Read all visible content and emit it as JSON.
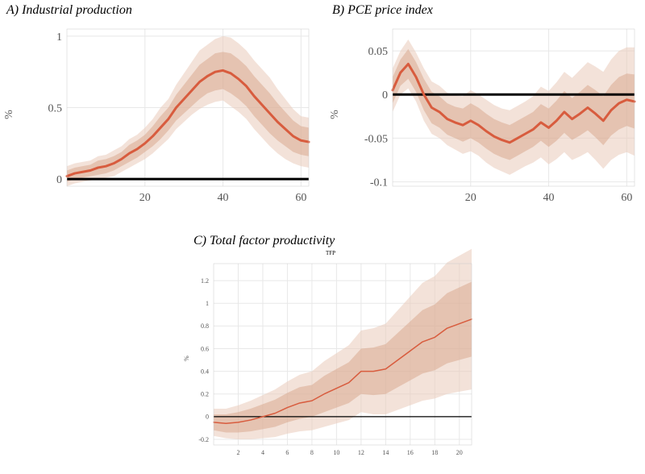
{
  "figure": {
    "background_color": "#ffffff",
    "panels": {
      "a": {
        "title": "A) Industrial production",
        "title_fontsize": 16,
        "title_color": "#000000",
        "ylabel": "%",
        "ylabel_fontsize": 14,
        "type": "line-with-bands",
        "xlim": [
          0,
          62
        ],
        "ylim": [
          -0.05,
          1.05
        ],
        "x_ticks": [
          20,
          40,
          60
        ],
        "y_ticks": [
          0,
          0.5,
          1
        ],
        "y_tick_labels": [
          "0",
          "0.5",
          "1"
        ],
        "tick_fontsize": 14,
        "grid_color": "#e8e8e8",
        "line_color": "#d85c3e",
        "line_width": 3,
        "band_inner_color": "#d9a98f",
        "band_inner_opacity": 0.55,
        "band_outer_color": "#e9cbb9",
        "band_outer_opacity": 0.55,
        "zero_line_color": "#000000",
        "zero_line_width": 3,
        "x": [
          0,
          2,
          4,
          6,
          8,
          10,
          12,
          14,
          16,
          18,
          20,
          22,
          24,
          26,
          28,
          30,
          32,
          34,
          36,
          38,
          40,
          42,
          44,
          46,
          48,
          50,
          52,
          54,
          56,
          58,
          60,
          62
        ],
        "mean": [
          0.02,
          0.04,
          0.05,
          0.06,
          0.08,
          0.09,
          0.11,
          0.14,
          0.18,
          0.21,
          0.25,
          0.3,
          0.36,
          0.42,
          0.5,
          0.56,
          0.62,
          0.68,
          0.72,
          0.75,
          0.76,
          0.74,
          0.7,
          0.65,
          0.58,
          0.52,
          0.46,
          0.4,
          0.35,
          0.3,
          0.27,
          0.26
        ],
        "inner_lo": [
          -0.02,
          0.0,
          0.01,
          0.02,
          0.03,
          0.04,
          0.06,
          0.09,
          0.12,
          0.15,
          0.19,
          0.23,
          0.28,
          0.34,
          0.41,
          0.46,
          0.51,
          0.56,
          0.6,
          0.62,
          0.63,
          0.6,
          0.56,
          0.51,
          0.44,
          0.38,
          0.32,
          0.27,
          0.23,
          0.19,
          0.17,
          0.16
        ],
        "inner_hi": [
          0.06,
          0.08,
          0.09,
          0.1,
          0.13,
          0.14,
          0.16,
          0.19,
          0.24,
          0.27,
          0.31,
          0.37,
          0.44,
          0.5,
          0.59,
          0.66,
          0.73,
          0.8,
          0.84,
          0.88,
          0.89,
          0.88,
          0.84,
          0.79,
          0.72,
          0.66,
          0.6,
          0.53,
          0.47,
          0.41,
          0.37,
          0.36
        ],
        "outer_lo": [
          -0.05,
          -0.03,
          -0.02,
          -0.01,
          0.0,
          0.01,
          0.02,
          0.05,
          0.08,
          0.11,
          0.14,
          0.18,
          0.23,
          0.28,
          0.35,
          0.4,
          0.45,
          0.49,
          0.52,
          0.54,
          0.55,
          0.51,
          0.47,
          0.42,
          0.35,
          0.29,
          0.23,
          0.18,
          0.14,
          0.11,
          0.09,
          0.08
        ],
        "outer_hi": [
          0.09,
          0.11,
          0.12,
          0.13,
          0.16,
          0.17,
          0.2,
          0.23,
          0.28,
          0.31,
          0.36,
          0.42,
          0.5,
          0.56,
          0.66,
          0.74,
          0.82,
          0.9,
          0.94,
          0.98,
          1.0,
          0.99,
          0.95,
          0.9,
          0.83,
          0.77,
          0.71,
          0.63,
          0.56,
          0.49,
          0.44,
          0.43
        ]
      },
      "b": {
        "title": "B) PCE price index",
        "title_fontsize": 16,
        "title_color": "#000000",
        "ylabel": "%",
        "ylabel_fontsize": 14,
        "type": "line-with-bands",
        "xlim": [
          0,
          62
        ],
        "ylim": [
          -0.105,
          0.075
        ],
        "x_ticks": [
          20,
          40,
          60
        ],
        "y_ticks": [
          -0.1,
          -0.05,
          0,
          0.05
        ],
        "y_tick_labels": [
          "-0.1",
          "-0.05",
          "0",
          "0.05"
        ],
        "tick_fontsize": 14,
        "grid_color": "#e8e8e8",
        "line_color": "#d85c3e",
        "line_width": 3,
        "band_inner_color": "#d9a98f",
        "band_inner_opacity": 0.55,
        "band_outer_color": "#e9cbb9",
        "band_outer_opacity": 0.55,
        "zero_line_color": "#000000",
        "zero_line_width": 3,
        "x": [
          0,
          2,
          4,
          6,
          8,
          10,
          12,
          14,
          16,
          18,
          20,
          22,
          24,
          26,
          28,
          30,
          32,
          34,
          36,
          38,
          40,
          42,
          44,
          46,
          48,
          50,
          52,
          54,
          56,
          58,
          60,
          62
        ],
        "mean": [
          0.005,
          0.025,
          0.035,
          0.02,
          0.0,
          -0.015,
          -0.02,
          -0.028,
          -0.032,
          -0.035,
          -0.03,
          -0.035,
          -0.042,
          -0.048,
          -0.052,
          -0.055,
          -0.05,
          -0.045,
          -0.04,
          -0.032,
          -0.038,
          -0.03,
          -0.02,
          -0.028,
          -0.022,
          -0.015,
          -0.022,
          -0.03,
          -0.018,
          -0.01,
          -0.006,
          -0.008
        ],
        "inner_lo": [
          -0.01,
          0.01,
          0.018,
          0.003,
          -0.018,
          -0.033,
          -0.038,
          -0.046,
          -0.05,
          -0.054,
          -0.05,
          -0.055,
          -0.062,
          -0.068,
          -0.072,
          -0.075,
          -0.07,
          -0.065,
          -0.06,
          -0.053,
          -0.06,
          -0.053,
          -0.044,
          -0.052,
          -0.047,
          -0.041,
          -0.049,
          -0.058,
          -0.047,
          -0.04,
          -0.036,
          -0.039
        ],
        "inner_hi": [
          0.02,
          0.04,
          0.052,
          0.037,
          0.018,
          0.003,
          -0.002,
          -0.01,
          -0.014,
          -0.016,
          -0.01,
          -0.015,
          -0.022,
          -0.028,
          -0.032,
          -0.035,
          -0.03,
          -0.025,
          -0.02,
          -0.011,
          -0.016,
          -0.007,
          0.004,
          -0.004,
          0.003,
          0.011,
          0.005,
          -0.002,
          0.011,
          0.02,
          0.024,
          0.023
        ],
        "outer_lo": [
          -0.02,
          0.0,
          0.007,
          -0.008,
          -0.03,
          -0.045,
          -0.05,
          -0.058,
          -0.063,
          -0.068,
          -0.065,
          -0.07,
          -0.078,
          -0.084,
          -0.088,
          -0.092,
          -0.087,
          -0.082,
          -0.078,
          -0.072,
          -0.08,
          -0.074,
          -0.066,
          -0.075,
          -0.071,
          -0.066,
          -0.075,
          -0.085,
          -0.075,
          -0.069,
          -0.066,
          -0.07
        ],
        "outer_hi": [
          0.03,
          0.05,
          0.063,
          0.048,
          0.03,
          0.015,
          0.01,
          0.002,
          -0.001,
          -0.002,
          0.005,
          -0.0,
          -0.006,
          -0.012,
          -0.016,
          -0.018,
          -0.013,
          -0.008,
          -0.002,
          0.009,
          0.004,
          0.014,
          0.026,
          0.019,
          0.028,
          0.037,
          0.032,
          0.026,
          0.04,
          0.05,
          0.054,
          0.054
        ]
      },
      "c": {
        "title": "C) Total factor productivity",
        "tiny_title": "TFP",
        "tiny_title_fontsize": 7,
        "title_fontsize": 16,
        "title_color": "#000000",
        "ylabel": "%",
        "ylabel_fontsize": 8,
        "type": "line-with-bands",
        "xlim": [
          0,
          21
        ],
        "ylim": [
          -0.25,
          1.35
        ],
        "x_ticks": [
          2,
          4,
          6,
          8,
          10,
          12,
          14,
          16,
          18,
          20
        ],
        "y_ticks": [
          -0.2,
          0,
          0.2,
          0.4,
          0.6,
          0.8,
          1.0,
          1.2
        ],
        "y_tick_labels": [
          "-0.2",
          "0",
          "0.2",
          "0.4",
          "0.6",
          "0.8",
          "1",
          "1.2"
        ],
        "tick_fontsize": 8,
        "grid_color": "#e8e8e8",
        "line_color": "#d85c3e",
        "line_width": 1.5,
        "band_inner_color": "#d9a98f",
        "band_inner_opacity": 0.55,
        "band_outer_color": "#e9cbb9",
        "band_outer_opacity": 0.55,
        "zero_line_color": "#000000",
        "zero_line_width": 1.2,
        "x": [
          0,
          1,
          2,
          3,
          4,
          5,
          6,
          7,
          8,
          9,
          10,
          11,
          12,
          13,
          14,
          15,
          16,
          17,
          18,
          19,
          20,
          21
        ],
        "mean": [
          -0.05,
          -0.06,
          -0.05,
          -0.03,
          0.0,
          0.03,
          0.08,
          0.12,
          0.14,
          0.2,
          0.25,
          0.3,
          0.4,
          0.4,
          0.42,
          0.5,
          0.58,
          0.66,
          0.7,
          0.78,
          0.82,
          0.86
        ],
        "inner_lo": [
          -0.12,
          -0.14,
          -0.14,
          -0.13,
          -0.11,
          -0.09,
          -0.05,
          -0.02,
          0.0,
          0.04,
          0.08,
          0.12,
          0.2,
          0.19,
          0.2,
          0.26,
          0.32,
          0.38,
          0.41,
          0.47,
          0.5,
          0.53
        ],
        "inner_hi": [
          0.02,
          0.02,
          0.04,
          0.07,
          0.11,
          0.15,
          0.21,
          0.26,
          0.28,
          0.36,
          0.42,
          0.48,
          0.6,
          0.61,
          0.64,
          0.74,
          0.84,
          0.94,
          0.99,
          1.09,
          1.14,
          1.19
        ],
        "outer_lo": [
          -0.17,
          -0.19,
          -0.2,
          -0.2,
          -0.19,
          -0.18,
          -0.15,
          -0.13,
          -0.12,
          -0.09,
          -0.06,
          -0.03,
          0.04,
          0.02,
          0.02,
          0.06,
          0.1,
          0.14,
          0.16,
          0.2,
          0.22,
          0.24
        ],
        "outer_hi": [
          0.07,
          0.07,
          0.1,
          0.14,
          0.19,
          0.24,
          0.31,
          0.37,
          0.4,
          0.49,
          0.56,
          0.63,
          0.76,
          0.78,
          0.82,
          0.94,
          1.06,
          1.18,
          1.24,
          1.36,
          1.42,
          1.48
        ]
      }
    }
  }
}
